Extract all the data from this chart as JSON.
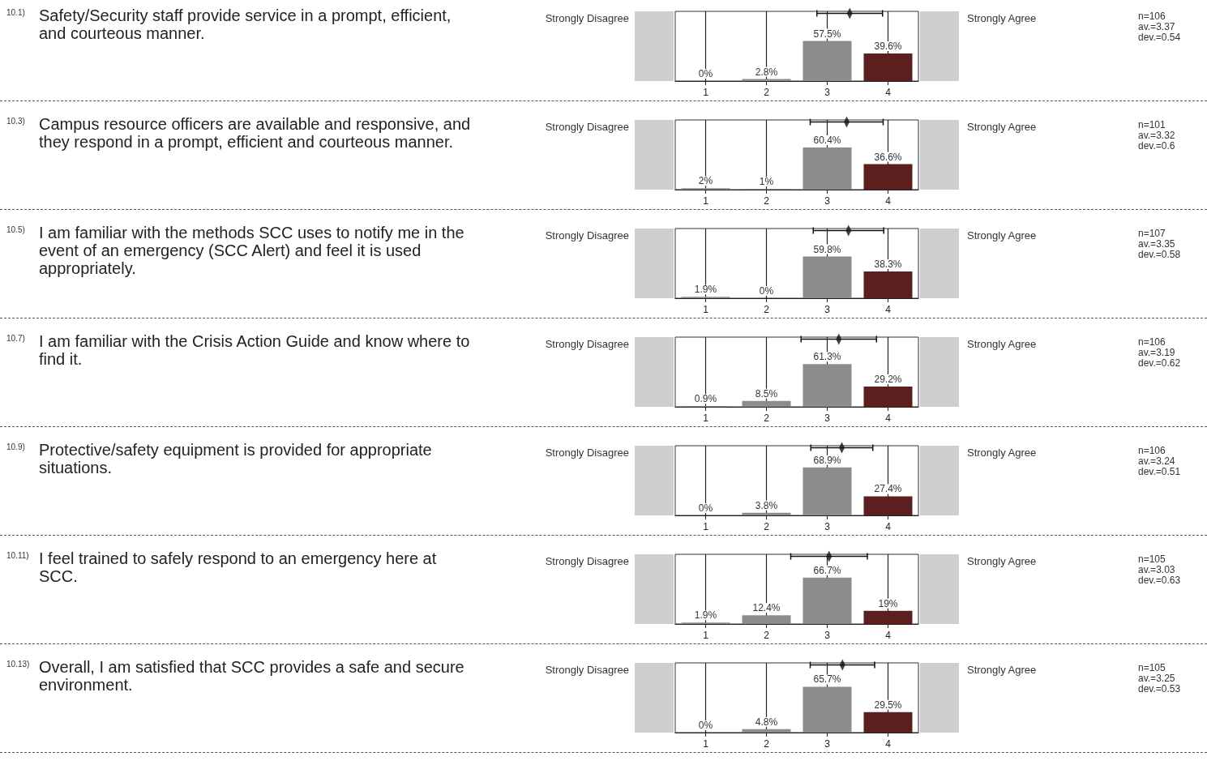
{
  "chart_data": [
    {
      "type": "bar",
      "annotations": [
        "10.1)",
        "Strongly Disagree",
        "Strongly Agree",
        "n=106",
        "av.=3.37",
        "dev.=0.54",
        "Safety/Security staff provide service in a prompt, efficient, and courteous manner."
      ],
      "x": [
        1,
        2,
        3,
        4
      ],
      "xlim": [
        0.5,
        4.5
      ],
      "xticks": [
        1,
        2,
        3,
        4
      ],
      "ylim": [
        0,
        100
      ],
      "tick_labels": "x",
      "grid": "x",
      "series": [
        {
          "type": "bar",
          "values": [
            0,
            2.8,
            57.5,
            39.6
          ],
          "colors": [
            "#8c8c8c",
            "#8c8c8c",
            "#8c8c8c",
            "#5c1f1f"
          ],
          "value_labels": [
            "0%",
            "2.8%",
            "57.5%",
            "39.6%"
          ]
        },
        {
          "type": "scatter",
          "x": [
            3.37
          ],
          "values": [
            97
          ],
          "xerrors": [
            0.54
          ],
          "color": "#111111",
          "marker": "diamond"
        }
      ]
    },
    {
      "type": "bar",
      "annotations": [
        "10.3)",
        "Strongly Disagree",
        "Strongly Agree",
        "n=101",
        "av.=3.32",
        "dev.=0.6",
        "Campus resource officers are available and responsive, and they respond in a prompt, efficient and courteous manner."
      ],
      "x": [
        1,
        2,
        3,
        4
      ],
      "xlim": [
        0.5,
        4.5
      ],
      "xticks": [
        1,
        2,
        3,
        4
      ],
      "ylim": [
        0,
        100
      ],
      "tick_labels": "x",
      "grid": "x",
      "series": [
        {
          "type": "bar",
          "values": [
            2,
            1,
            60.4,
            36.6
          ],
          "colors": [
            "#8c8c8c",
            "#8c8c8c",
            "#8c8c8c",
            "#5c1f1f"
          ],
          "value_labels": [
            "2%",
            "1%",
            "60.4%",
            "36.6%"
          ]
        },
        {
          "type": "scatter",
          "x": [
            3.32
          ],
          "values": [
            97
          ],
          "xerrors": [
            0.6
          ],
          "color": "#111111",
          "marker": "diamond"
        }
      ]
    },
    {
      "type": "bar",
      "annotations": [
        "10.5)",
        "Strongly Disagree",
        "Strongly Agree",
        "n=107",
        "av.=3.35",
        "dev.=0.58",
        "I am familiar with the methods SCC uses to notify me in the event of an emergency (SCC Alert) and feel it is used appropriately."
      ],
      "x": [
        1,
        2,
        3,
        4
      ],
      "xlim": [
        0.5,
        4.5
      ],
      "xticks": [
        1,
        2,
        3,
        4
      ],
      "ylim": [
        0,
        100
      ],
      "tick_labels": "x",
      "grid": "x",
      "series": [
        {
          "type": "bar",
          "values": [
            1.9,
            0,
            59.8,
            38.3
          ],
          "colors": [
            "#8c8c8c",
            "#8c8c8c",
            "#8c8c8c",
            "#5c1f1f"
          ],
          "value_labels": [
            "1.9%",
            "0%",
            "59.8%",
            "38.3%"
          ]
        },
        {
          "type": "scatter",
          "x": [
            3.35
          ],
          "values": [
            97
          ],
          "xerrors": [
            0.58
          ],
          "color": "#111111",
          "marker": "diamond"
        }
      ]
    },
    {
      "type": "bar",
      "annotations": [
        "10.7)",
        "Strongly Disagree",
        "Strongly Agree",
        "n=106",
        "av.=3.19",
        "dev.=0.62",
        "I am familiar with the Crisis Action Guide and know where to find it."
      ],
      "x": [
        1,
        2,
        3,
        4
      ],
      "xlim": [
        0.5,
        4.5
      ],
      "xticks": [
        1,
        2,
        3,
        4
      ],
      "ylim": [
        0,
        100
      ],
      "tick_labels": "x",
      "grid": "x",
      "series": [
        {
          "type": "bar",
          "values": [
            0.9,
            8.5,
            61.3,
            29.2
          ],
          "colors": [
            "#8c8c8c",
            "#8c8c8c",
            "#8c8c8c",
            "#5c1f1f"
          ],
          "value_labels": [
            "0.9%",
            "8.5%",
            "61.3%",
            "29.2%"
          ]
        },
        {
          "type": "scatter",
          "x": [
            3.19
          ],
          "values": [
            97
          ],
          "xerrors": [
            0.62
          ],
          "color": "#111111",
          "marker": "diamond"
        }
      ]
    },
    {
      "type": "bar",
      "annotations": [
        "10.9)",
        "Strongly Disagree",
        "Strongly Agree",
        "n=106",
        "av.=3.24",
        "dev.=0.51",
        "Protective/safety equipment is provided for appropriate situations."
      ],
      "x": [
        1,
        2,
        3,
        4
      ],
      "xlim": [
        0.5,
        4.5
      ],
      "xticks": [
        1,
        2,
        3,
        4
      ],
      "ylim": [
        0,
        100
      ],
      "tick_labels": "x",
      "grid": "x",
      "series": [
        {
          "type": "bar",
          "values": [
            0,
            3.8,
            68.9,
            27.4
          ],
          "colors": [
            "#8c8c8c",
            "#8c8c8c",
            "#8c8c8c",
            "#5c1f1f"
          ],
          "value_labels": [
            "0%",
            "3.8%",
            "68.9%",
            "27.4%"
          ]
        },
        {
          "type": "scatter",
          "x": [
            3.24
          ],
          "values": [
            97
          ],
          "xerrors": [
            0.51
          ],
          "color": "#111111",
          "marker": "diamond"
        }
      ]
    },
    {
      "type": "bar",
      "annotations": [
        "10.11)",
        "Strongly Disagree",
        "Strongly Agree",
        "n=105",
        "av.=3.03",
        "dev.=0.63",
        "I feel trained to safely respond to an emergency here at SCC."
      ],
      "x": [
        1,
        2,
        3,
        4
      ],
      "xlim": [
        0.5,
        4.5
      ],
      "xticks": [
        1,
        2,
        3,
        4
      ],
      "ylim": [
        0,
        100
      ],
      "tick_labels": "x",
      "grid": "x",
      "series": [
        {
          "type": "bar",
          "values": [
            1.9,
            12.4,
            66.7,
            19
          ],
          "colors": [
            "#8c8c8c",
            "#8c8c8c",
            "#8c8c8c",
            "#5c1f1f"
          ],
          "value_labels": [
            "1.9%",
            "12.4%",
            "66.7%",
            "19%"
          ]
        },
        {
          "type": "scatter",
          "x": [
            3.03
          ],
          "values": [
            97
          ],
          "xerrors": [
            0.63
          ],
          "color": "#111111",
          "marker": "diamond"
        }
      ]
    },
    {
      "type": "bar",
      "annotations": [
        "10.13)",
        "Strongly Disagree",
        "Strongly Agree",
        "n=105",
        "av.=3.25",
        "dev.=0.53",
        "Overall, I am satisfied that SCC provides a safe and secure environment."
      ],
      "x": [
        1,
        2,
        3,
        4
      ],
      "xlim": [
        0.5,
        4.5
      ],
      "xticks": [
        1,
        2,
        3,
        4
      ],
      "ylim": [
        0,
        100
      ],
      "tick_labels": "x",
      "grid": "x",
      "series": [
        {
          "type": "bar",
          "values": [
            0,
            4.8,
            65.7,
            29.5
          ],
          "colors": [
            "#8c8c8c",
            "#8c8c8c",
            "#8c8c8c",
            "#5c1f1f"
          ],
          "value_labels": [
            "0%",
            "4.8%",
            "65.7%",
            "29.5%"
          ]
        },
        {
          "type": "scatter",
          "x": [
            3.25
          ],
          "values": [
            97
          ],
          "xerrors": [
            0.53
          ],
          "color": "#111111",
          "marker": "diamond"
        }
      ]
    }
  ]
}
